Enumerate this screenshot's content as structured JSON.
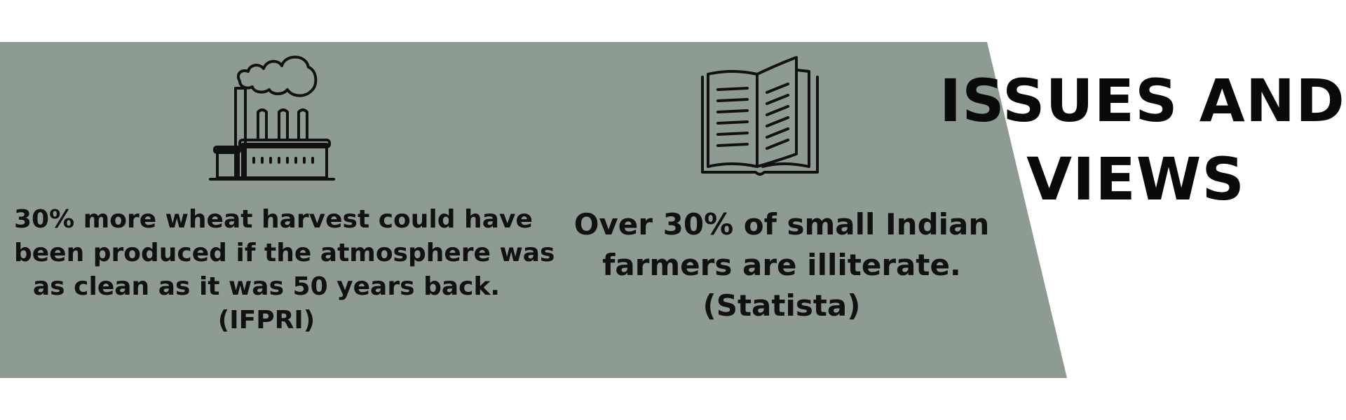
{
  "colors": {
    "band": "#8e9b93",
    "background": "#ffffff",
    "text": "#111111",
    "icon_stroke": "#111111"
  },
  "heading": {
    "line1": "ISSUES AND",
    "line2": "VIEWS"
  },
  "facts": [
    {
      "icon": "factory-icon",
      "lines": [
        "30% more wheat harvest could have",
        "been produced if the atmosphere was",
        "as clean as it was 50 years back.",
        "(IFPRI)"
      ]
    },
    {
      "icon": "book-icon",
      "lines": [
        "Over 30% of small Indian",
        "farmers are illiterate.",
        "(Statista)"
      ]
    }
  ]
}
